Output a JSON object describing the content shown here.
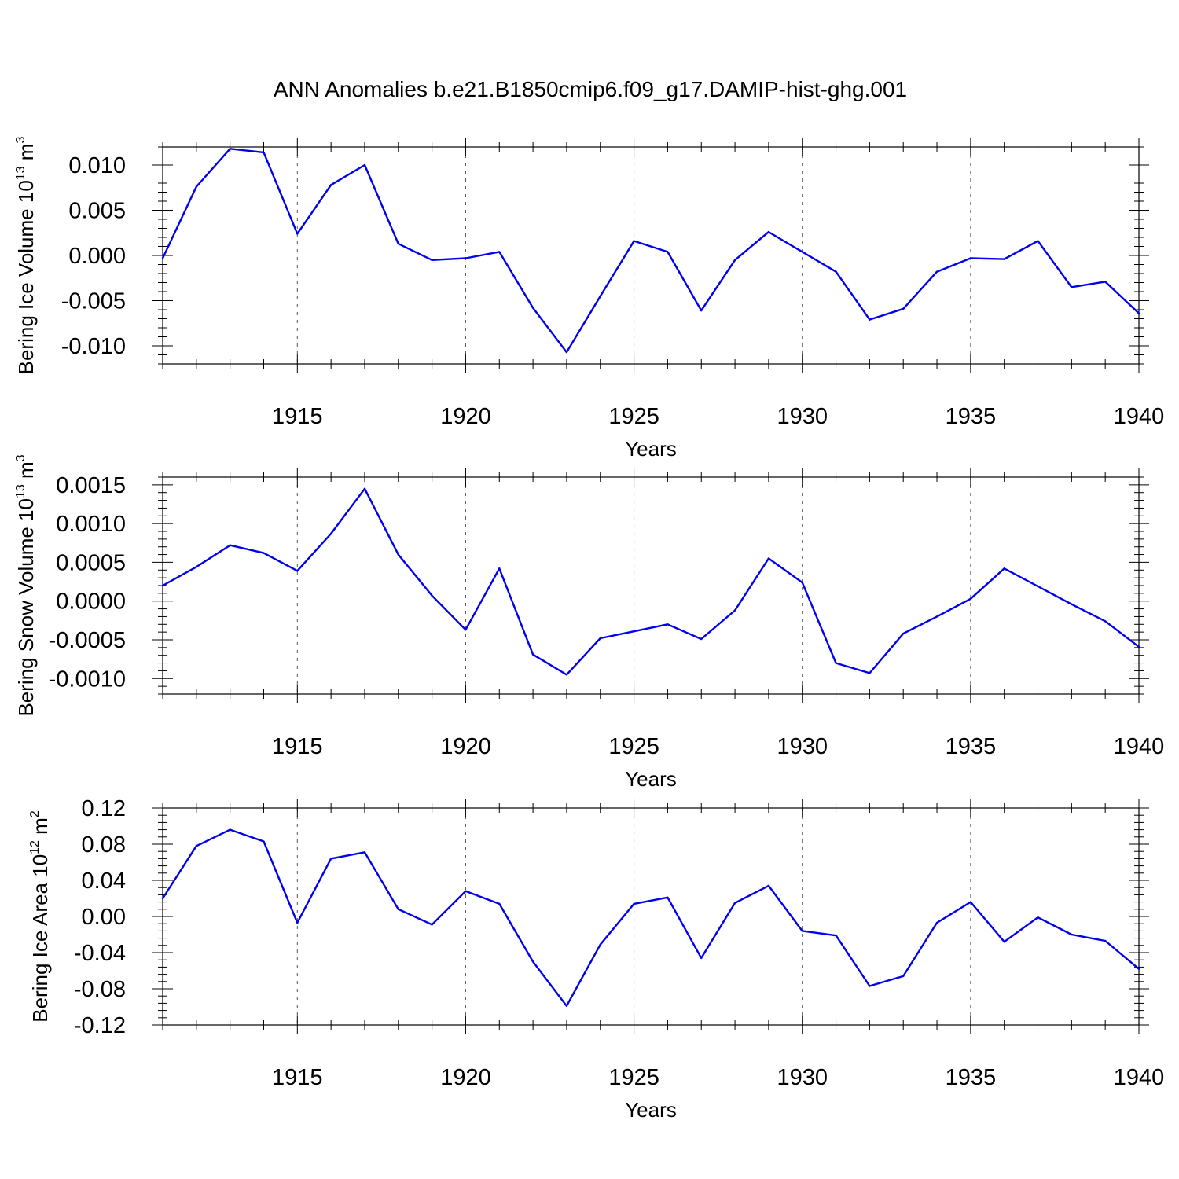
{
  "title": "ANN Anomalies b.e21.B1850cmip6.f09_g17.DAMIP-hist-ghg.001",
  "line_color": "#0000ee",
  "chart_data": [
    {
      "type": "line",
      "ylabel_main": "Bering Ice Volume 10",
      "ylabel_sup": "13",
      "ylabel_unit": " m",
      "ylabel_unit_sup": "3",
      "xlabel": "Years",
      "xlim": [
        1911,
        1940
      ],
      "ylim": [
        -0.012,
        0.012
      ],
      "xticks": [
        1915,
        1920,
        1925,
        1930,
        1935,
        1940
      ],
      "xtick_labels": [
        "1915",
        "1920",
        "1925",
        "1930",
        "1935",
        "1940"
      ],
      "yticks": [
        -0.01,
        -0.005,
        0,
        0.005,
        0.01
      ],
      "ytick_labels": [
        "-0.010",
        "-0.005",
        "0.000",
        "0.005",
        "0.010"
      ],
      "grid": "vertical dashed at major x ticks",
      "x": [
        1911,
        1912,
        1913,
        1914,
        1915,
        1916,
        1917,
        1918,
        1919,
        1920,
        1921,
        1922,
        1923,
        1924,
        1925,
        1926,
        1927,
        1928,
        1929,
        1930,
        1931,
        1932,
        1933,
        1934,
        1935,
        1936,
        1937,
        1938,
        1939,
        1940
      ],
      "values": [
        -0.0003,
        0.0076,
        0.0118,
        0.0114,
        0.0024,
        0.0078,
        0.01,
        0.0013,
        -0.0005,
        -0.0003,
        0.0004,
        -0.0058,
        -0.0107,
        -0.0045,
        0.0016,
        0.0004,
        -0.0061,
        -0.0005,
        0.0026,
        0.0004,
        -0.0018,
        -0.0071,
        -0.0059,
        -0.0018,
        -0.0003,
        -0.0004,
        0.0016,
        -0.0035,
        -0.0029,
        -0.0064
      ]
    },
    {
      "type": "line",
      "ylabel_main": "Bering Snow Volume 10",
      "ylabel_sup": "13",
      "ylabel_unit": " m",
      "ylabel_unit_sup": "3",
      "xlabel": "Years",
      "xlim": [
        1911,
        1940
      ],
      "ylim": [
        -0.0012,
        0.0016
      ],
      "xticks": [
        1915,
        1920,
        1925,
        1930,
        1935,
        1940
      ],
      "xtick_labels": [
        "1915",
        "1920",
        "1925",
        "1930",
        "1935",
        "1940"
      ],
      "yticks": [
        -0.001,
        -0.0005,
        0,
        0.0005,
        0.001,
        0.0015
      ],
      "ytick_labels": [
        "-0.0010",
        "-0.0005",
        "0.0000",
        "0.0005",
        "0.0010",
        "0.0015"
      ],
      "grid": "vertical dashed at major x ticks",
      "x": [
        1911,
        1912,
        1913,
        1914,
        1915,
        1916,
        1917,
        1918,
        1919,
        1920,
        1921,
        1922,
        1923,
        1924,
        1925,
        1926,
        1927,
        1928,
        1929,
        1930,
        1931,
        1932,
        1933,
        1934,
        1935,
        1936,
        1937,
        1938,
        1939,
        1940
      ],
      "values": [
        0.0002,
        0.00044,
        0.00072,
        0.00062,
        0.00039,
        0.00087,
        0.00145,
        0.0006,
        7e-05,
        -0.00037,
        0.00042,
        -0.00069,
        -0.00095,
        -0.00048,
        -0.00039,
        -0.0003,
        -0.00049,
        -0.00012,
        0.00055,
        0.00024,
        -0.0008,
        -0.00093,
        -0.00042,
        -0.0002,
        3e-05,
        0.00042,
        0.00019,
        -4e-05,
        -0.00026,
        -0.00059
      ]
    },
    {
      "type": "line",
      "ylabel_main": "Bering Ice Area 10",
      "ylabel_sup": "12",
      "ylabel_unit": " m",
      "ylabel_unit_sup": "2",
      "xlabel": "Years",
      "xlim": [
        1911,
        1940
      ],
      "ylim": [
        -0.12,
        0.12
      ],
      "xticks": [
        1915,
        1920,
        1925,
        1930,
        1935,
        1940
      ],
      "xtick_labels": [
        "1915",
        "1920",
        "1925",
        "1930",
        "1935",
        "1940"
      ],
      "yticks": [
        -0.12,
        -0.08,
        -0.04,
        0,
        0.04,
        0.08,
        0.12
      ],
      "ytick_labels": [
        "-0.12",
        "-0.08",
        "-0.04",
        "0.00",
        "0.04",
        "0.08",
        "0.12"
      ],
      "grid": "vertical dashed at major x ticks",
      "x": [
        1911,
        1912,
        1913,
        1914,
        1915,
        1916,
        1917,
        1918,
        1919,
        1920,
        1921,
        1922,
        1923,
        1924,
        1925,
        1926,
        1927,
        1928,
        1929,
        1930,
        1931,
        1932,
        1933,
        1934,
        1935,
        1936,
        1937,
        1938,
        1939,
        1940
      ],
      "values": [
        0.02,
        0.078,
        0.096,
        0.083,
        -0.007,
        0.064,
        0.071,
        0.008,
        -0.009,
        0.028,
        0.014,
        -0.05,
        -0.099,
        -0.031,
        0.014,
        0.021,
        -0.046,
        0.015,
        0.034,
        -0.016,
        -0.021,
        -0.077,
        -0.066,
        -0.007,
        0.016,
        -0.028,
        -0.001,
        -0.02,
        -0.027,
        -0.058
      ]
    }
  ]
}
